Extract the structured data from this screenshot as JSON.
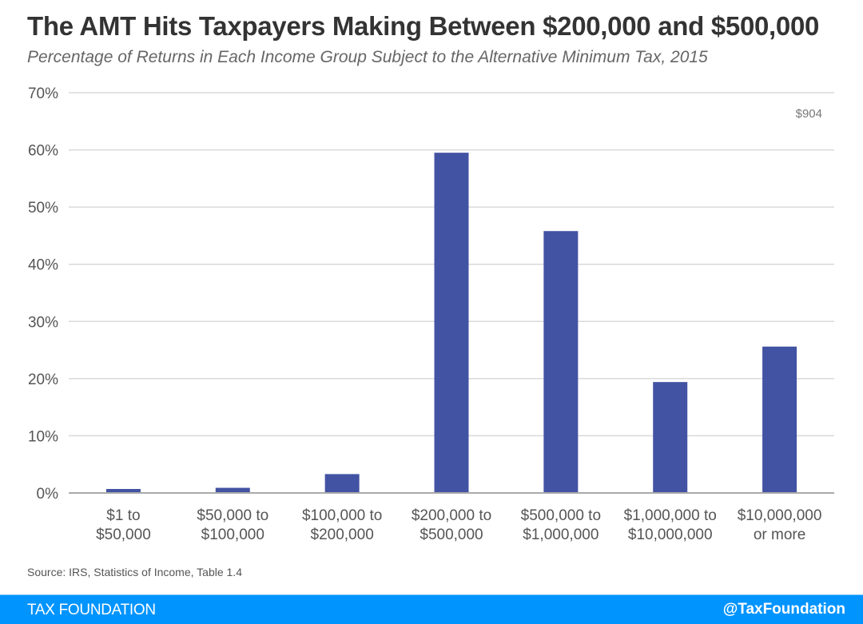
{
  "header": {
    "title": "The AMT Hits Taxpayers Making Between $200,000 and $500,000",
    "subtitle": "Percentage of Returns in Each Income Group Subject to the Alternative Minimum Tax, 2015"
  },
  "source": "Source: IRS, Statistics of Income, Table 1.4",
  "footer": {
    "brand": "TAX FOUNDATION",
    "handle": "@TaxFoundation"
  },
  "colors": {
    "bar": "#4353a3",
    "grid": "#d9d9d9",
    "axis": "#aaaaaa",
    "footer_bg": "#0094ff"
  },
  "chart_data": {
    "type": "bar",
    "title": "The AMT Hits Taxpayers Making Between $200,000 and $500,000",
    "subtitle": "Percentage of Returns in Each Income Group Subject to the Alternative Minimum Tax, 2015",
    "xlabel": "",
    "ylabel": "",
    "categories": [
      [
        "$1 to",
        "$50,000"
      ],
      [
        "$50,000 to",
        "$100,000"
      ],
      [
        "$100,000 to",
        "$200,000"
      ],
      [
        "$200,000 to",
        "$500,000"
      ],
      [
        "$500,000 to",
        "$1,000,000"
      ],
      [
        "$1,000,000 to",
        "$10,000,000"
      ],
      [
        "$10,000,000",
        "or more"
      ]
    ],
    "values": [
      0.7,
      0.9,
      3.3,
      59.5,
      45.8,
      19.4,
      25.6
    ],
    "unit": "%",
    "ylim": [
      0,
      70
    ],
    "yticks": [
      0,
      10,
      20,
      30,
      40,
      50,
      60,
      70
    ],
    "ytick_labels": [
      "0%",
      "10%",
      "20%",
      "30%",
      "40%",
      "50%",
      "60%",
      "70%"
    ],
    "grid": true,
    "legend": "none",
    "annotations": [
      {
        "text": "$904",
        "position": "top-right"
      }
    ]
  }
}
